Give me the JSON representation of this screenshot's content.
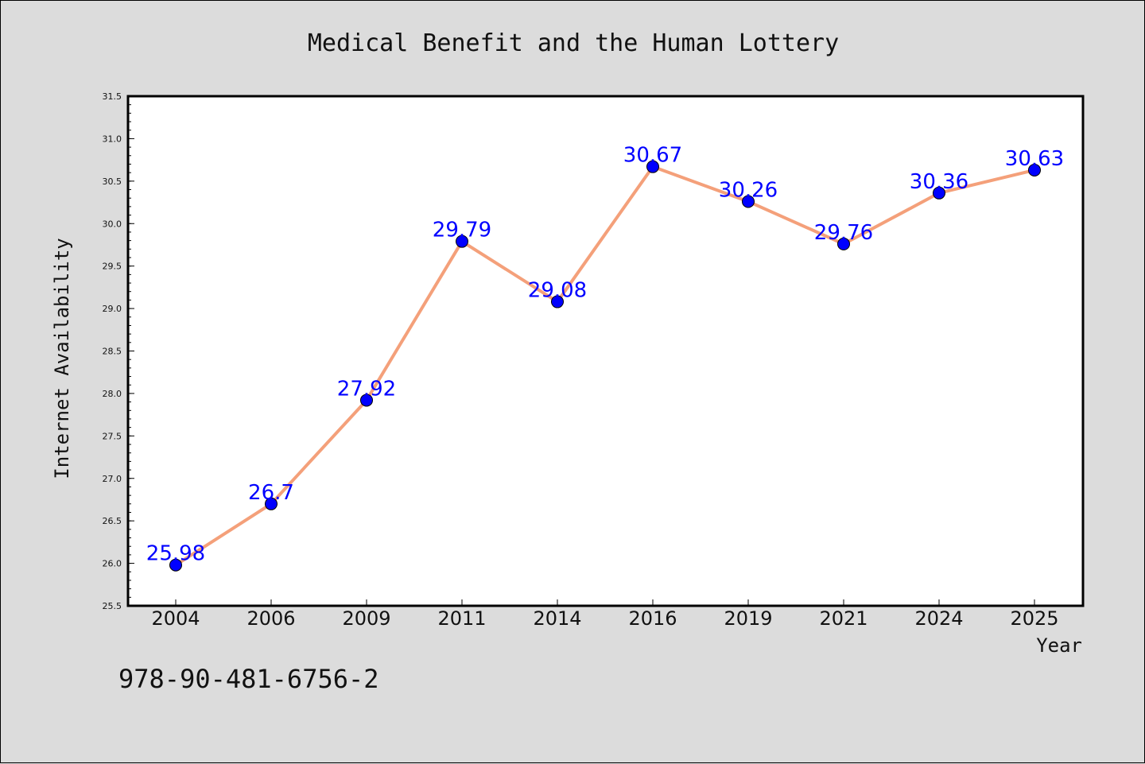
{
  "chart_data": {
    "type": "line",
    "title": "Medical Benefit and the Human Lottery",
    "xlabel": "Year",
    "ylabel": "Internet Availability",
    "categories": [
      "2004",
      "2006",
      "2009",
      "2011",
      "2014",
      "2016",
      "2019",
      "2021",
      "2024",
      "2025"
    ],
    "series": [
      {
        "values": [
          25.98,
          26.7,
          27.92,
          29.79,
          29.08,
          30.67,
          30.26,
          29.76,
          30.36,
          30.63
        ],
        "labels": [
          "25.98",
          "26.7",
          "27.92",
          "29.79",
          "29.08",
          "30.67",
          "30.26",
          "29.76",
          "30.36",
          "30.63"
        ]
      }
    ],
    "ylim": [
      25.5,
      31.5
    ],
    "yticks": [
      "25.5",
      "26.0",
      "26.5",
      "27.0",
      "27.5",
      "28.0",
      "28.5",
      "29.0",
      "29.5",
      "30.0",
      "30.5",
      "31.0",
      "31.5"
    ],
    "grid": false,
    "colors": {
      "line": "#f4a07a",
      "marker": "#0000ff",
      "label": "#0000ff",
      "plot_bg": "#ffffff",
      "figure_bg": "#dcdcdc"
    }
  },
  "annotation": {
    "isbn": "978-90-481-6756-2"
  }
}
